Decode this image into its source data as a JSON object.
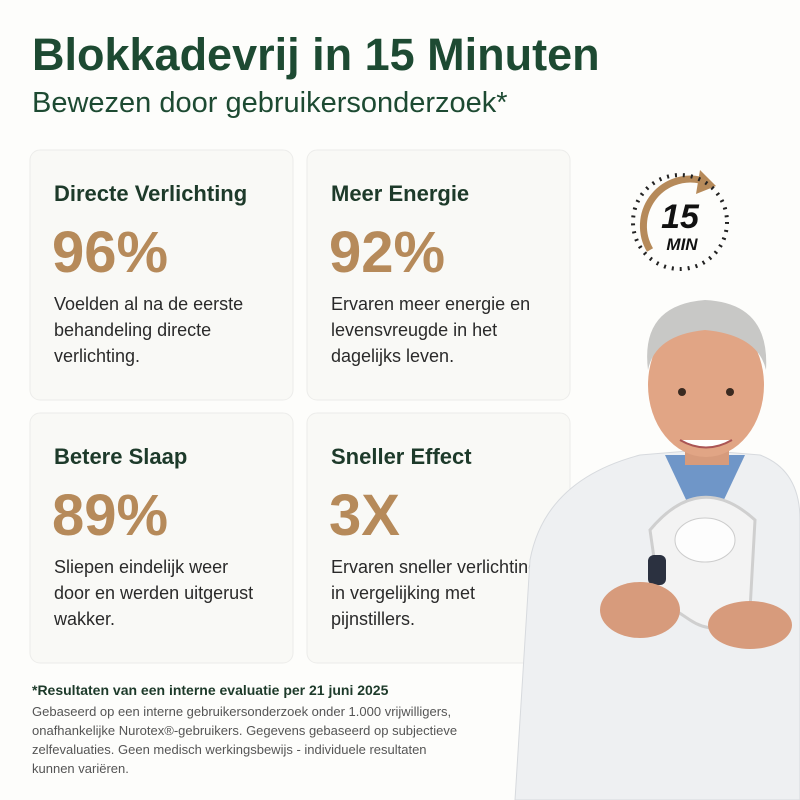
{
  "header": {
    "title": "Blokkadevrij in 15 Minuten",
    "subtitle": "Bewezen door gebruikersonderzoek*"
  },
  "cards": [
    {
      "heading": "Directe Verlichting",
      "stat": "96%",
      "description": [
        "Voelden al na de eerste",
        "behandeling directe",
        "verlichting."
      ]
    },
    {
      "heading": "Meer Energie",
      "stat": "92%",
      "description": [
        "Ervaren meer energie en",
        "levensvreugde in het",
        "dagelijks leven."
      ]
    },
    {
      "heading": "Betere Slaap",
      "stat": "89%",
      "description": [
        "Sliepen eindelijk weer",
        "door en werden uitgerust",
        "wakker."
      ]
    },
    {
      "heading": "Sneller Effect",
      "stat": "3X",
      "description": [
        "Ervaren sneller verlichting",
        "in vergelijking met",
        "pijnstillers."
      ]
    }
  ],
  "badge": {
    "number": "15",
    "unit": "MIN"
  },
  "footnote": {
    "title": "*Resultaten van een interne evaluatie per 21 juni 2025",
    "lines": [
      "Gebaseerd op een interne gebruikersonderzoek onder 1.000 vrijwilligers,",
      "onafhankelijke Nurotex®-gebruikers. Gegevens gebaseerd op subjectieve",
      "zelfevaluaties. Geen medisch werkingsbewijs - individuele resultaten",
      "kunnen variëren."
    ]
  }
}
